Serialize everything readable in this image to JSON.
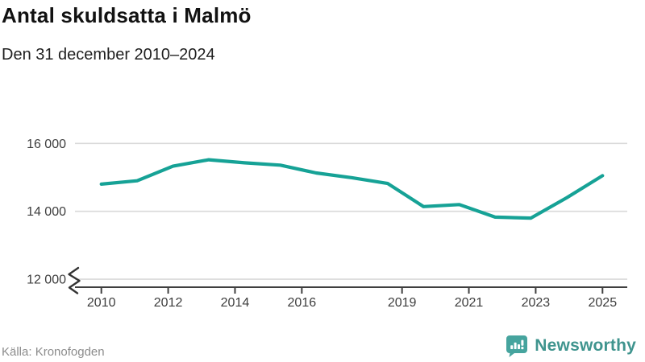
{
  "header": {
    "title": "Antal skuldsatta i Malmö",
    "subtitle": "Den 31 december 2010–2024"
  },
  "footer": {
    "source": "Källa: Kronofogden",
    "brand": "Newsworthy"
  },
  "colors": {
    "line": "#16a296",
    "grid": "#d9d9d9",
    "axis": "#3f3f3f",
    "tick_label": "#3d3d3d",
    "logo_teal": "#46a49e"
  },
  "chart_data": {
    "type": "line",
    "title": "Antal skuldsatta i Malmö",
    "subtitle": "Den 31 december 2010–2024",
    "source": "Källa: Kronofogden",
    "x": [
      2010,
      2011,
      2012,
      2013,
      2014,
      2015,
      2016,
      2017,
      2018,
      2019,
      2020,
      2021,
      2022,
      2023,
      2024
    ],
    "values": [
      14800,
      14900,
      15330,
      15520,
      15430,
      15360,
      15130,
      14990,
      14820,
      14140,
      14200,
      13830,
      13800,
      14400,
      15050
    ],
    "series_name": "Antal skuldsatta",
    "xlabel": "",
    "ylabel": "",
    "xlim": [
      2010,
      2025
    ],
    "ylim": [
      11765,
      16000
    ],
    "axis_break_at_bottom": true,
    "grid": "horizontal",
    "legend_position": "none",
    "xticks": [
      {
        "value": 2010,
        "label": "2010"
      },
      {
        "value": 2012,
        "label": "2012"
      },
      {
        "value": 2014,
        "label": "2014"
      },
      {
        "value": 2016,
        "label": "2016"
      },
      {
        "value": 2019,
        "label": "2019"
      },
      {
        "value": 2021,
        "label": "2021"
      },
      {
        "value": 2023,
        "label": "2023"
      },
      {
        "value": 2025,
        "label": "2025"
      }
    ],
    "yticks": [
      {
        "value": 12000,
        "label": "12 000"
      },
      {
        "value": 14000,
        "label": "14 000"
      },
      {
        "value": 16000,
        "label": "16 000"
      }
    ]
  }
}
